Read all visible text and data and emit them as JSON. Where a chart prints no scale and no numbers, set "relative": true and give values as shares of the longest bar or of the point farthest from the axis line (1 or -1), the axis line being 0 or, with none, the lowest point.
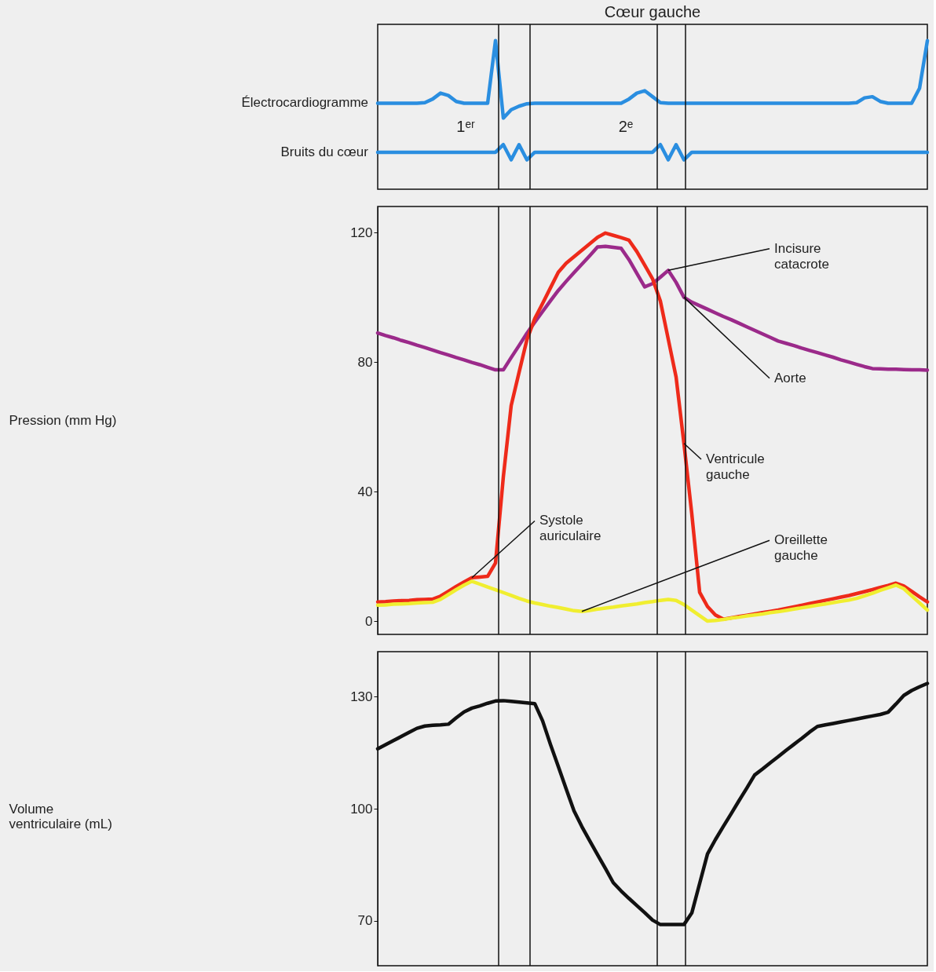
{
  "chart_data": [
    {
      "type": "line",
      "title": "Cœur gauche",
      "relative": true,
      "tick_labels": false,
      "categories": [
        null,
        null,
        null,
        null,
        null,
        null,
        null,
        null,
        null,
        null,
        null,
        null,
        null,
        null,
        null,
        null,
        null,
        null,
        null,
        null,
        null,
        null,
        null,
        null,
        null,
        null,
        null,
        null,
        null,
        null,
        null,
        null,
        null,
        null,
        null,
        null,
        null,
        null,
        null,
        null,
        null,
        null,
        null,
        null,
        null,
        null,
        null,
        null,
        null,
        null,
        null,
        null,
        null,
        null,
        null,
        null,
        null,
        null,
        null,
        null,
        null,
        null,
        null,
        null,
        null,
        null,
        null,
        null,
        null,
        null,
        null
      ],
      "series": [
        {
          "name": "Électrocardiogramme",
          "color": "#2a8ee0",
          "values": [
            0.579,
            0.579,
            0.579,
            0.579,
            0.579,
            0.579,
            0.583,
            0.607,
            0.647,
            0.631,
            0.591,
            0.579,
            0.579,
            0.579,
            0.579,
            1,
            0.479,
            0.535,
            0.559,
            0.575,
            0.579,
            0.579,
            0.579,
            0.579,
            0.579,
            0.579,
            0.579,
            0.579,
            0.579,
            0.579,
            0.579,
            0.579,
            0.607,
            0.647,
            0.663,
            0.623,
            0.583,
            0.579,
            0.579,
            0.579,
            0.579,
            0.579,
            0.579,
            0.579,
            0.579,
            0.579,
            0.579,
            0.579,
            0.579,
            0.579,
            0.579,
            0.579,
            0.579,
            0.579,
            0.579,
            0.579,
            0.579,
            0.579,
            0.579,
            0.579,
            0.579,
            0.583,
            0.615,
            0.623,
            0.591,
            0.579,
            0.579,
            0.579,
            0.579,
            0.679,
            1
          ]
        },
        {
          "name": "Bruits du cœur",
          "color": "#2a8ee0",
          "values": [
            0.249,
            0.249,
            0.249,
            0.249,
            0.249,
            0.249,
            0.249,
            0.249,
            0.249,
            0.249,
            0.249,
            0.249,
            0.249,
            0.249,
            0.249,
            0.249,
            0.3,
            0.198,
            0.3,
            0.198,
            0.249,
            0.249,
            0.249,
            0.249,
            0.249,
            0.249,
            0.249,
            0.249,
            0.249,
            0.249,
            0.249,
            0.249,
            0.249,
            0.249,
            0.249,
            0.249,
            0.3,
            0.198,
            0.3,
            0.198,
            0.249,
            0.249,
            0.249,
            0.249,
            0.249,
            0.249,
            0.249,
            0.249,
            0.249,
            0.249,
            0.249,
            0.249,
            0.249,
            0.249,
            0.249,
            0.249,
            0.249,
            0.249,
            0.249,
            0.249,
            0.249,
            0.249,
            0.249,
            0.249,
            0.249,
            0.249,
            0.249,
            0.249,
            0.249,
            0.249,
            0.249
          ]
        }
      ],
      "annotations": [
        "1ᵉʳ",
        "2ᵉ"
      ]
    },
    {
      "type": "line",
      "ylabel": "Pression (mm Hg)",
      "ylim": [
        -4,
        128
      ],
      "yticks": [
        0,
        40,
        80,
        120
      ],
      "tick_labels": "y",
      "categories": [
        null,
        null,
        null,
        null,
        null,
        null,
        null,
        null,
        null,
        null,
        null,
        null,
        null,
        null,
        null,
        null,
        null,
        null,
        null,
        null,
        null,
        null,
        null,
        null,
        null,
        null,
        null,
        null,
        null,
        null,
        null,
        null,
        null,
        null,
        null,
        null,
        null,
        null,
        null,
        null,
        null,
        null,
        null,
        null,
        null,
        null,
        null,
        null,
        null,
        null,
        null,
        null,
        null,
        null,
        null,
        null,
        null,
        null,
        null,
        null,
        null,
        null,
        null,
        null,
        null,
        null,
        null,
        null,
        null,
        null,
        null
      ],
      "series": [
        {
          "name": "Aorte",
          "color": "#9b2a8a",
          "values": [
            89,
            88.2,
            87.5,
            86.7,
            86,
            85.2,
            84.5,
            83.7,
            82.9,
            82.2,
            81.4,
            80.7,
            79.9,
            79.2,
            78.4,
            77.6,
            77.6,
            81.4,
            85.1,
            88.9,
            92.3,
            95.6,
            98.9,
            102.1,
            104.9,
            107.6,
            110.2,
            112.8,
            115.5,
            115.7,
            115.4,
            115.1,
            111.6,
            107.4,
            103.2,
            104.2,
            106.2,
            108.3,
            104.6,
            100,
            98.5,
            97.4,
            96.3,
            95.2,
            94.1,
            93.1,
            92,
            90.9,
            89.8,
            88.7,
            87.6,
            86.5,
            85.8,
            85.1,
            84.3,
            83.6,
            82.9,
            82.2,
            81.5,
            80.7,
            80,
            79.3,
            78.6,
            78,
            77.9,
            77.8,
            77.8,
            77.7,
            77.6,
            77.6,
            77.5
          ]
        },
        {
          "name": "Ventricule gauche",
          "color": "#ee2a1a",
          "values": [
            6,
            6.1,
            6.3,
            6.4,
            6.5,
            6.7,
            6.8,
            6.9,
            7.8,
            9.3,
            10.8,
            12.2,
            13.5,
            13.7,
            13.9,
            18,
            44.6,
            66.6,
            76.8,
            86.9,
            93.4,
            98.1,
            102.9,
            107.7,
            110.5,
            112.5,
            114.5,
            116.5,
            118.5,
            119.8,
            119.1,
            118.4,
            117.6,
            114.1,
            109.9,
            105.7,
            98.8,
            87.1,
            75.4,
            54.9,
            33.2,
            9,
            4.6,
            2,
            0.7,
            1.1,
            1.5,
            1.9,
            2.3,
            2.7,
            3.1,
            3.5,
            4,
            4.5,
            5,
            5.5,
            6,
            6.5,
            7,
            7.5,
            8,
            8.6,
            9.2,
            9.8,
            10.5,
            11.1,
            11.8,
            10.9,
            9.3,
            7.6,
            6
          ]
        },
        {
          "name": "Oreillette gauche",
          "color": "#f0ee30",
          "values": [
            5,
            5.1,
            5.3,
            5.4,
            5.5,
            5.7,
            5.8,
            5.9,
            6.8,
            8.3,
            9.8,
            11.2,
            12.4,
            11.5,
            10.6,
            9.8,
            8.9,
            8,
            7.1,
            6.3,
            5.7,
            5.2,
            4.7,
            4.3,
            3.8,
            3.3,
            3.1,
            3.4,
            3.8,
            4.1,
            4.4,
            4.8,
            5.1,
            5.4,
            5.8,
            6.1,
            6.5,
            6.8,
            6.5,
            5.2,
            3.5,
            1.8,
            0.1,
            0.3,
            0.6,
            1,
            1.3,
            1.7,
            2,
            2.3,
            2.7,
            3,
            3.4,
            3.8,
            4.2,
            4.6,
            5,
            5.4,
            5.8,
            6.2,
            6.6,
            7.1,
            7.9,
            8.7,
            9.6,
            10.4,
            11.2,
            10.1,
            7.9,
            5.7,
            3.5
          ]
        }
      ],
      "annotations": [
        "Incisure catacrote",
        "Systole auriculaire"
      ]
    },
    {
      "type": "line",
      "ylabel": "Volume ventriculaire (mL)",
      "ylim": [
        58,
        142
      ],
      "yticks": [
        70,
        100,
        130
      ],
      "tick_labels": "y",
      "categories": [
        null,
        null,
        null,
        null,
        null,
        null,
        null,
        null,
        null,
        null,
        null,
        null,
        null,
        null,
        null,
        null,
        null,
        null,
        null,
        null,
        null,
        null,
        null,
        null,
        null,
        null,
        null,
        null,
        null,
        null,
        null,
        null,
        null,
        null,
        null,
        null,
        null,
        null,
        null,
        null,
        null,
        null,
        null,
        null,
        null,
        null,
        null,
        null,
        null,
        null,
        null,
        null,
        null,
        null,
        null,
        null,
        null,
        null,
        null,
        null,
        null,
        null,
        null,
        null,
        null,
        null,
        null,
        null,
        null,
        null,
        null
      ],
      "series": [
        {
          "color": "#111111",
          "values": [
            116,
            117.1,
            118.2,
            119.3,
            120.4,
            121.5,
            122.1,
            122.3,
            122.4,
            122.6,
            124.3,
            125.9,
            126.9,
            127.5,
            128.2,
            128.8,
            128.9,
            128.7,
            128.5,
            128.3,
            128.1,
            123.5,
            117.2,
            111.3,
            105.3,
            99.4,
            95.2,
            91.4,
            87.7,
            84,
            80.2,
            78,
            76,
            74.1,
            72.2,
            70.2,
            69,
            69,
            69,
            69,
            72.1,
            80,
            87.9,
            91.7,
            95.2,
            98.6,
            102.1,
            105.5,
            109,
            110.6,
            112.3,
            113.9,
            115.6,
            117.2,
            118.8,
            120.5,
            122,
            122.4,
            122.8,
            123.2,
            123.6,
            124,
            124.4,
            124.8,
            125.2,
            125.8,
            128,
            130.3,
            131.6,
            132.6,
            133.5
          ]
        }
      ]
    }
  ]
}
